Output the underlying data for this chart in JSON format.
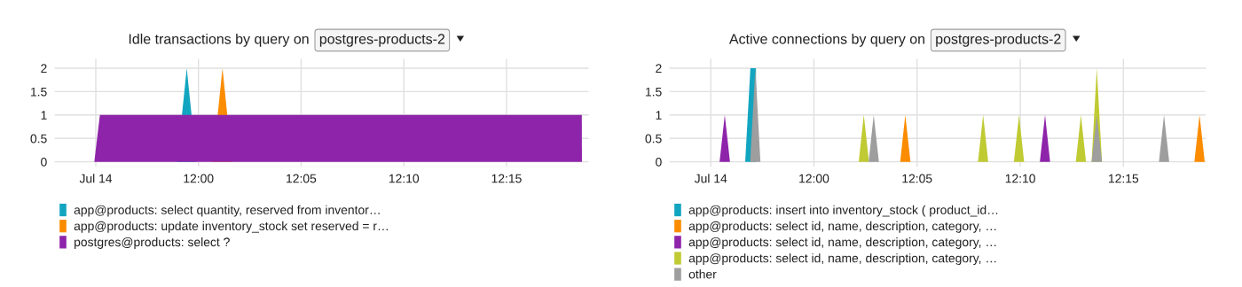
{
  "chart_data": [
    {
      "type": "area",
      "title": "Idle transactions by query on",
      "annotations": [
        "postgres-products-2"
      ],
      "xlim": [
        11.8833,
        12.3167
      ],
      "ylim": [
        -0.1,
        2.2
      ],
      "xticks": [
        {
          "value": 11.9167,
          "label": "Jul 14"
        },
        {
          "value": 12.0,
          "label": "12:00"
        },
        {
          "value": 12.0833,
          "label": "12:05"
        },
        {
          "value": 12.1667,
          "label": "12:10"
        },
        {
          "value": 12.25,
          "label": "12:15"
        }
      ],
      "yticks": [
        0,
        0.5,
        1,
        1.5,
        2
      ],
      "grid": true,
      "legend": "bottom",
      "series": [
        {
          "name": "app@products: select quantity, reserved from inventor…",
          "color": "#12a5c0",
          "x": [
            11.9827,
            11.9905,
            11.9983
          ],
          "values": [
            0,
            2,
            0
          ]
        },
        {
          "name": "app@products: update inventory_stock set reserved = r…",
          "color": "#fb8c00",
          "x": [
            12.0117,
            12.0195,
            12.0273
          ],
          "values": [
            0,
            2,
            0
          ]
        },
        {
          "name": "postgres@products: select ?",
          "color": "#8e24aa",
          "x": [
            11.9155,
            11.92,
            12.3111,
            12.3112
          ],
          "values": [
            0,
            1,
            1,
            0
          ]
        }
      ]
    },
    {
      "type": "area",
      "title": "Active connections by query on",
      "annotations": [
        "postgres-products-2"
      ],
      "xlim": [
        11.8833,
        12.3167
      ],
      "ylim": [
        -0.1,
        2.2
      ],
      "xticks": [
        {
          "value": 11.9167,
          "label": "Jul 14"
        },
        {
          "value": 12.0,
          "label": "12:00"
        },
        {
          "value": 12.0833,
          "label": "12:05"
        },
        {
          "value": 12.1667,
          "label": "12:10"
        },
        {
          "value": 12.25,
          "label": "12:15"
        }
      ],
      "yticks": [
        0,
        0.5,
        1,
        1.5,
        2
      ],
      "grid": true,
      "legend": "bottom",
      "series": [
        {
          "name": "app@products: insert into inventory_stock ( product_id…",
          "color": "#12a5c0",
          "x": [
            11.9445,
            11.9487,
            11.9532,
            11.9535
          ],
          "values": [
            0,
            2,
            2,
            0
          ]
        },
        {
          "name": "app@products: select id, name, description, category, …",
          "color": "#fb8c00",
          "x": [
            12.0697,
            12.0738,
            12.078,
            12.3073,
            12.3115,
            12.3157
          ],
          "values": [
            0,
            1,
            0,
            0,
            1,
            0
          ]
        },
        {
          "name": "app@products: select id, name, description, category, …",
          "color": "#8e24aa",
          "x": [
            11.9238,
            11.928,
            11.9322,
            12.1825,
            12.1867,
            12.1908
          ],
          "values": [
            0,
            1,
            0,
            0,
            1,
            0
          ]
        },
        {
          "name": "app@products: select id, name, description, category, …",
          "color": "#c0ca33",
          "x": [
            12.0362,
            12.0403,
            12.0445,
            12.1325,
            12.1367,
            12.1408,
            12.1615,
            12.1657,
            12.1698,
            12.2115,
            12.2157,
            12.2198,
            12.2243,
            12.2285,
            12.2327
          ],
          "values": [
            0,
            1,
            0,
            0,
            1,
            0,
            0,
            1,
            0,
            0,
            1,
            0,
            0,
            2,
            0
          ]
        },
        {
          "name": "other",
          "color": "#9e9e9e",
          "x": [
            11.9485,
            11.9527,
            11.9568,
            12.0442,
            12.0483,
            12.0525,
            12.2243,
            12.2285,
            12.2327,
            12.2787,
            12.2828,
            12.287
          ],
          "values": [
            0,
            2,
            0,
            0,
            1,
            0,
            0,
            1,
            0,
            0,
            1,
            0
          ]
        }
      ]
    }
  ]
}
